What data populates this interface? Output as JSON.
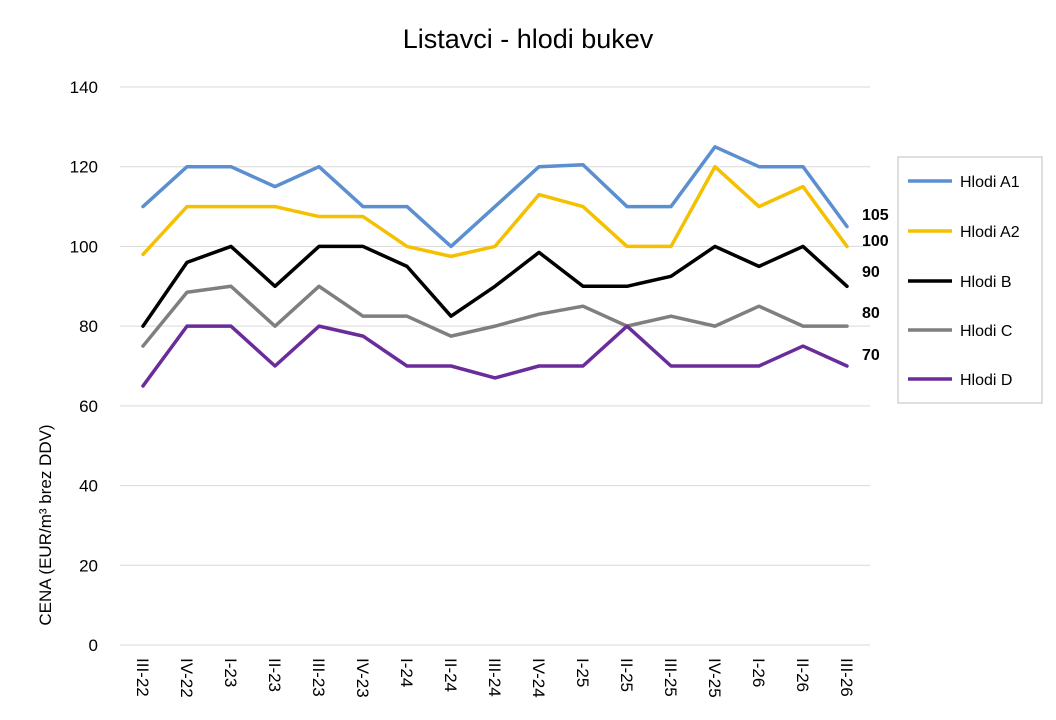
{
  "chart_data": {
    "type": "line",
    "title": "Listavci - hlodi bukev",
    "ylabel": "CENA (EUR/m³ brez DDV)",
    "xlabel": "",
    "ylim": [
      0,
      140
    ],
    "yticks": [
      0,
      20,
      40,
      60,
      80,
      100,
      120,
      140
    ],
    "grid": true,
    "legend_position": "right",
    "categories": [
      "III-22",
      "IV-22",
      "I-23",
      "II-23",
      "III-23",
      "IV-23",
      "I-24",
      "II-24",
      "III-24",
      "IV-24",
      "I-25",
      "II-25",
      "III-25",
      "IV-25",
      "I-26",
      "II-26",
      "III-26"
    ],
    "series": [
      {
        "name": "Hlodi A1",
        "color": "#5B8FCF",
        "values": [
          110,
          120,
          120,
          115,
          120,
          110,
          110,
          100,
          110,
          120,
          120.5,
          110,
          110,
          125,
          120,
          120,
          105
        ]
      },
      {
        "name": "Hlodi A2",
        "color": "#F5C000",
        "values": [
          98,
          110,
          110,
          110,
          107.5,
          107.5,
          100,
          97.5,
          100,
          113,
          110,
          100,
          100,
          120,
          110,
          115,
          100
        ]
      },
      {
        "name": "Hlodi B",
        "color": "#000000",
        "values": [
          80,
          96,
          100,
          90,
          100,
          100,
          95,
          82.5,
          90,
          98.5,
          90,
          90,
          92.5,
          100,
          95,
          100,
          90
        ]
      },
      {
        "name": "Hlodi C",
        "color": "#7F7F7F",
        "values": [
          75,
          88.5,
          90,
          80,
          90,
          82.5,
          82.5,
          77.5,
          80,
          83,
          85,
          80,
          82.5,
          80,
          85,
          80,
          80
        ]
      },
      {
        "name": "Hlodi D",
        "color": "#6A2C9A",
        "values": [
          65,
          80,
          80,
          70,
          80,
          77.5,
          70,
          70,
          67,
          70,
          70,
          80,
          70,
          70,
          70,
          75,
          70
        ]
      }
    ],
    "end_labels": [
      "105",
      "100",
      "90",
      "80",
      "70"
    ]
  }
}
